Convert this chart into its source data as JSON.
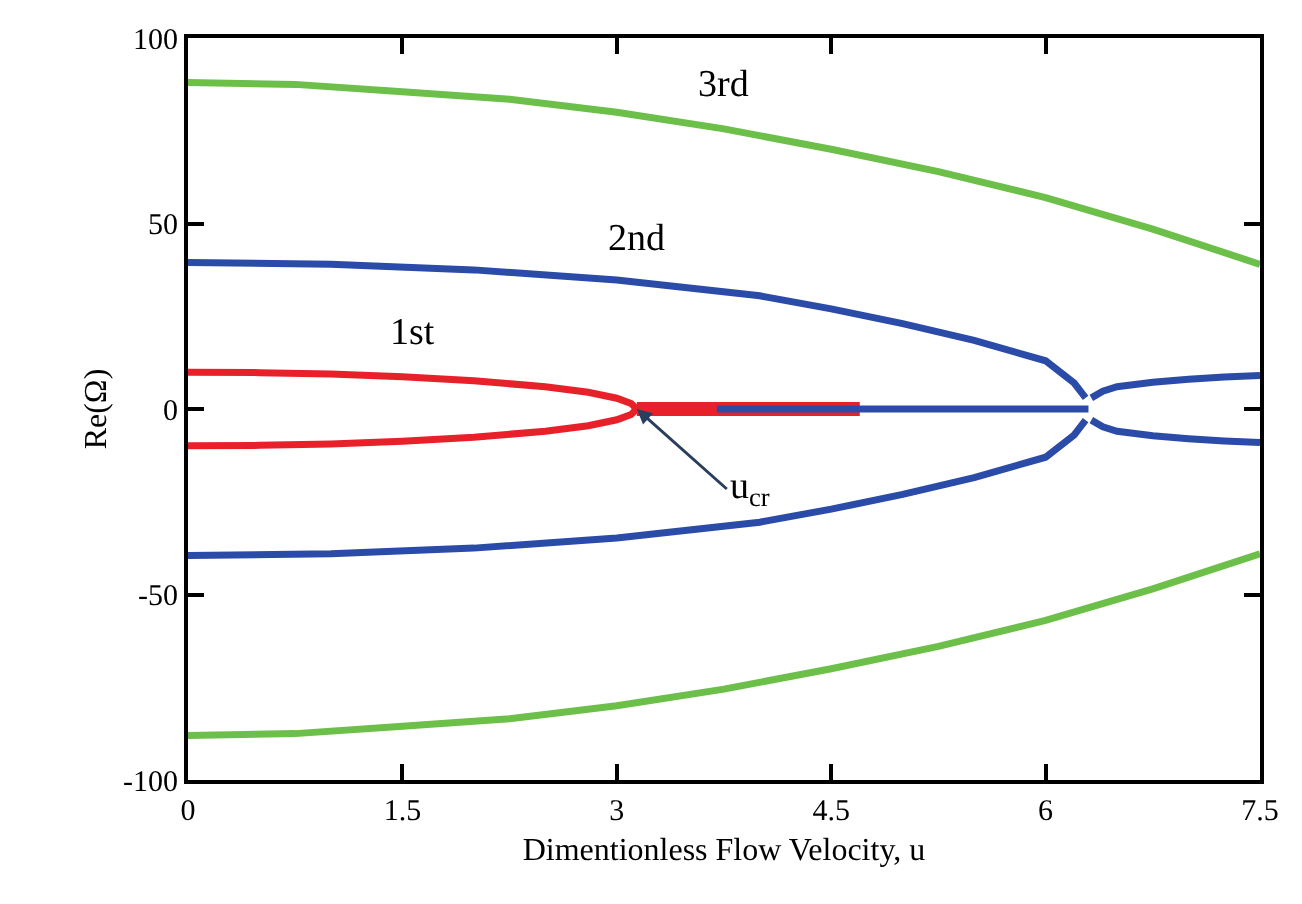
{
  "chart_data": {
    "type": "line",
    "xlabel": "Dimentionless Flow Velocity, u",
    "ylabel": "Re(Ω)",
    "xlim": [
      0,
      7.5
    ],
    "xticks": [
      0,
      1.5,
      3,
      4.5,
      6,
      7.5
    ],
    "ylim": [
      -100,
      100
    ],
    "yticks": [
      -100,
      -50,
      0,
      50,
      100
    ],
    "legend": false,
    "marker": "none",
    "line_style": "solid",
    "series": [
      {
        "name": "2nd",
        "color": "#2b4ba8",
        "x": [
          0,
          1,
          2,
          3,
          4,
          4.5,
          5,
          5.5,
          6,
          6.2,
          6.28
        ],
        "values": [
          39.5,
          39,
          37.5,
          34.8,
          30.5,
          27,
          23,
          18.5,
          13,
          7,
          3
        ]
      },
      {
        "color": "#2b4ba8",
        "x": [
          0,
          1,
          2,
          3,
          4,
          4.5,
          5,
          5.5,
          6,
          6.2,
          6.28
        ],
        "values": [
          -39.5,
          -39,
          -37.5,
          -34.8,
          -30.5,
          -27,
          -23,
          -18.5,
          -13,
          -7,
          -3
        ]
      },
      {
        "color": "#2b4ba8",
        "x": [
          6.32,
          6.4,
          6.5,
          6.75,
          7,
          7.25,
          7.5
        ],
        "values": [
          3,
          4.8,
          6,
          7.2,
          8,
          8.6,
          9
        ]
      },
      {
        "color": "#2b4ba8",
        "x": [
          6.32,
          6.4,
          6.5,
          6.75,
          7,
          7.25,
          7.5
        ],
        "values": [
          -3,
          -4.8,
          -6,
          -7.2,
          -8,
          -8.6,
          -9
        ]
      },
      {
        "name": "3rd",
        "color": "#6cc04a",
        "x": [
          0,
          0.75,
          1.5,
          2.25,
          3,
          3.75,
          4.5,
          5.25,
          6,
          6.75,
          7.5
        ],
        "values": [
          88,
          87.5,
          85.5,
          83.5,
          80,
          75.5,
          70,
          64,
          57,
          48.5,
          39
        ]
      },
      {
        "color": "#6cc04a",
        "x": [
          0,
          0.75,
          1.5,
          2.25,
          3,
          3.75,
          4.5,
          5.25,
          6,
          6.75,
          7.5
        ],
        "values": [
          -88,
          -87.5,
          -85.5,
          -83.5,
          -80,
          -75.5,
          -70,
          -64,
          -57,
          -48.5,
          -39
        ]
      },
      {
        "name": "1st",
        "color": "#e8202a",
        "x": [
          0,
          0.5,
          1,
          1.5,
          2,
          2.5,
          2.8,
          3,
          3.1,
          3.14
        ],
        "values": [
          9.9,
          9.8,
          9.4,
          8.7,
          7.6,
          6,
          4.5,
          2.9,
          1.5,
          0
        ]
      },
      {
        "color": "#e8202a",
        "x": [
          0,
          0.5,
          1,
          1.5,
          2,
          2.5,
          2.8,
          3,
          3.1,
          3.14
        ],
        "values": [
          -9.9,
          -9.8,
          -9.4,
          -8.7,
          -7.6,
          -6,
          -4.5,
          -2.9,
          -1.5,
          0
        ]
      },
      {
        "color": "#e8202a",
        "x": [
          3.14,
          4.7
        ],
        "values": [
          0,
          0
        ]
      },
      {
        "color": "#2b4ba8",
        "x": [
          3.7,
          6.3
        ],
        "values": [
          0,
          0
        ]
      }
    ],
    "annotations": [
      {
        "text": "u$_{cr}$",
        "x": 3.14,
        "y": 0
      }
    ]
  }
}
